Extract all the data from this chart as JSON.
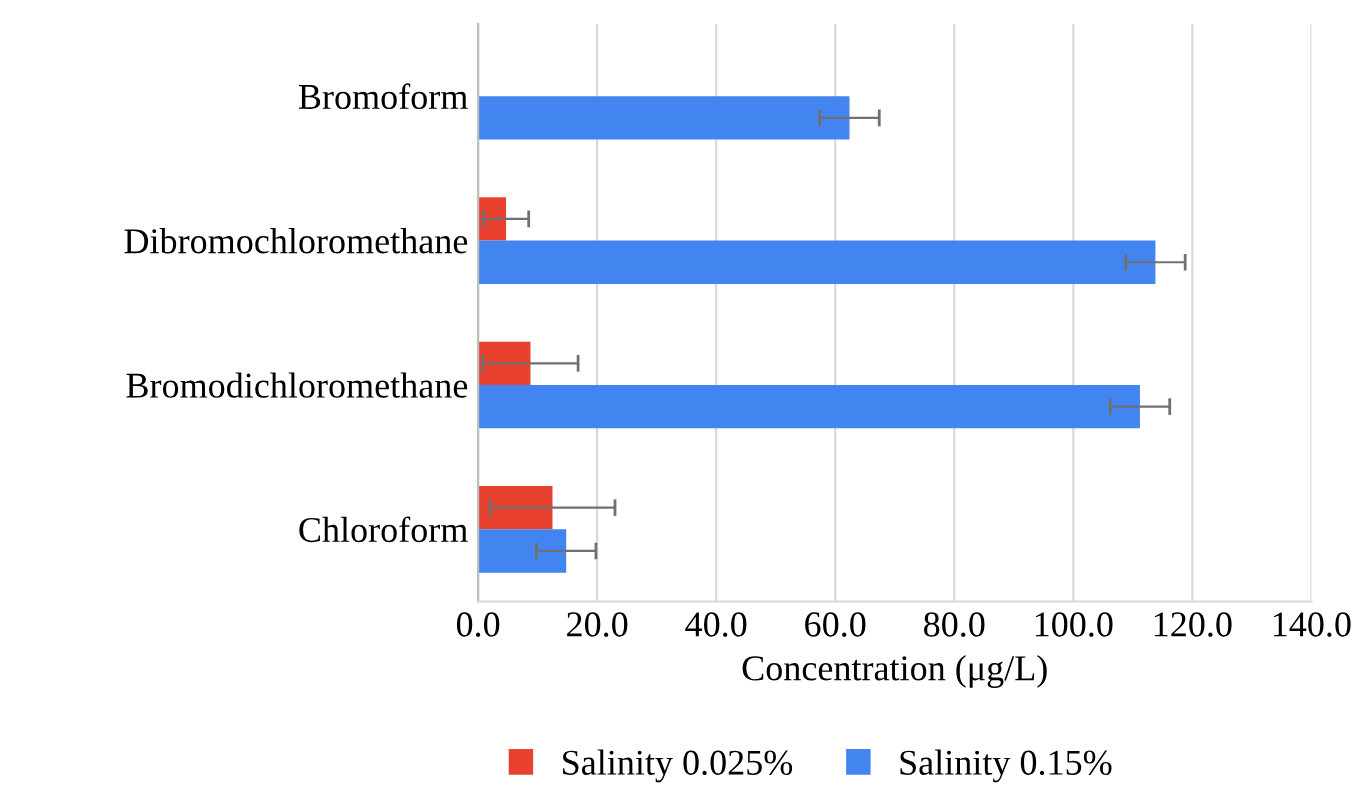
{
  "chart_data": {
    "type": "bar",
    "orientation": "horizontal",
    "xlabel": "Concentration (μg/L)",
    "categories": [
      "Bromoform",
      "Dibromochloromethane",
      "Bromodichloromethane",
      "Chloroform"
    ],
    "series": [
      {
        "name": "Salinity 0.025%",
        "color": "#e8412f",
        "values": [
          null,
          4.7,
          8.8,
          12.5
        ],
        "errors": [
          null,
          3.8,
          8.0,
          10.5
        ]
      },
      {
        "name": "Salinity 0.15%",
        "color": "#4385f0",
        "values": [
          62.4,
          113.8,
          111.2,
          14.8
        ],
        "errors": [
          5.0,
          5.0,
          5.0,
          5.0
        ]
      }
    ],
    "xlim": [
      0,
      140
    ],
    "xticks": [
      {
        "value": 0,
        "label": "0.0"
      },
      {
        "value": 20,
        "label": "20.0"
      },
      {
        "value": 40,
        "label": "40.0"
      },
      {
        "value": 60,
        "label": "60.0"
      },
      {
        "value": 80,
        "label": "80.0"
      },
      {
        "value": 100,
        "label": "100.0"
      },
      {
        "value": 120,
        "label": "120.0"
      },
      {
        "value": 140,
        "label": "140.0"
      }
    ],
    "grid": "x",
    "legend": "bottom"
  }
}
